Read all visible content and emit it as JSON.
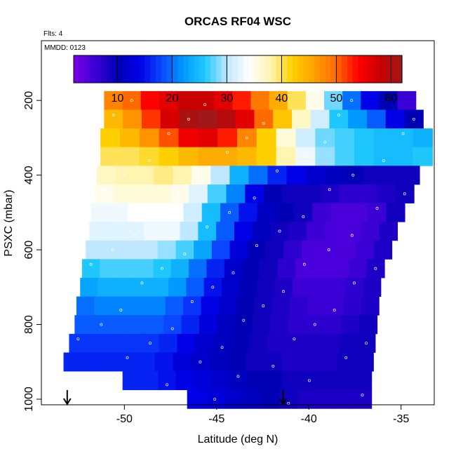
{
  "chart_data": {
    "type": "heatmap",
    "title": "ORCAS RF04 WSC",
    "corner_label_top": "Flts: 4",
    "corner_label_inner": "MMDD: 0123",
    "xlabel": "Latitude (deg N)",
    "ylabel": "PSXC (mbar)",
    "xlim": [
      -54.5,
      -33.2
    ],
    "ylim": [
      1015,
      40
    ],
    "y_reversed": true,
    "x_ticks": [
      -50,
      -45,
      -40,
      -35
    ],
    "x_tick_labels": [
      "-50",
      "-45",
      "-40",
      "-35"
    ],
    "y_ticks": [
      200,
      400,
      600,
      800,
      1000
    ],
    "y_tick_labels": [
      "200",
      "400",
      "600",
      "800",
      "1000"
    ],
    "colorbar": {
      "range": [
        2,
        62
      ],
      "ticks": [
        10,
        20,
        30,
        40,
        50,
        60
      ],
      "tick_labels": [
        "10",
        "20",
        "30",
        "40",
        "50",
        "60"
      ],
      "colors": [
        "#7a00e6",
        "#3a00d6",
        "#0000b4",
        "#0000e6",
        "#0a46ff",
        "#0099ff",
        "#1ec8ff",
        "#bfe8ff",
        "#ffffff",
        "#fff4b0",
        "#ffd000",
        "#ffa000",
        "#ff6a00",
        "#ff0000",
        "#c80000",
        "#a01818"
      ]
    },
    "arrows_lat": [
      -53.1,
      -41.4
    ],
    "grid": false,
    "rows": [
      {
        "p": 200,
        "lat_min": -51.1,
        "lat_max": -34.2,
        "values": [
          48,
          50,
          54,
          56,
          58,
          58,
          56,
          53,
          49,
          45,
          40,
          35,
          28,
          20,
          14,
          10,
          6
        ]
      },
      {
        "p": 250,
        "lat_min": -51.1,
        "lat_max": -33.8,
        "values": [
          44,
          47,
          52,
          57,
          61,
          62,
          60,
          56,
          50,
          43,
          37,
          31,
          26,
          22,
          19,
          14,
          10
        ]
      },
      {
        "p": 300,
        "lat_min": -51.3,
        "lat_max": -33.3,
        "values": [
          42,
          44,
          47,
          51,
          55,
          56,
          53,
          48,
          42,
          36,
          31,
          28,
          27,
          26,
          25,
          25,
          24
        ]
      },
      {
        "p": 350,
        "lat_min": -51.3,
        "lat_max": -33.3,
        "values": [
          40,
          40,
          41,
          42,
          44,
          45,
          45,
          44,
          42,
          38,
          33,
          29,
          27,
          26,
          25,
          25,
          26
        ]
      },
      {
        "p": 400,
        "lat_min": -51.5,
        "lat_max": -34.0,
        "values": [
          37,
          38,
          38,
          39,
          38,
          35,
          30,
          24,
          20,
          16,
          14,
          12,
          11,
          10,
          9,
          9,
          9
        ]
      },
      {
        "p": 450,
        "lat_min": -51.6,
        "lat_max": -34.3,
        "values": [
          35,
          36,
          36,
          36,
          35,
          32,
          27,
          21,
          14,
          10,
          9,
          9,
          8,
          7,
          7,
          8,
          9
        ]
      },
      {
        "p": 500,
        "lat_min": -51.8,
        "lat_max": -34.8,
        "values": [
          33,
          33,
          34,
          34,
          34,
          31,
          25,
          19,
          15,
          11,
          10,
          9,
          6,
          5,
          5,
          6,
          9
        ]
      },
      {
        "p": 550,
        "lat_min": -51.9,
        "lat_max": -35.2,
        "values": [
          32,
          32,
          32,
          33,
          33,
          30,
          25,
          19,
          14,
          11,
          9,
          8,
          6,
          5,
          5,
          6,
          8
        ]
      },
      {
        "p": 600,
        "lat_min": -52.1,
        "lat_max": -35.5,
        "values": [
          30,
          30,
          30,
          30,
          29,
          27,
          23,
          18,
          13,
          10,
          9,
          7,
          5,
          5,
          5,
          6,
          8
        ]
      },
      {
        "p": 650,
        "lat_min": -52.3,
        "lat_max": -35.9,
        "values": [
          26,
          27,
          27,
          27,
          26,
          24,
          20,
          16,
          12,
          10,
          9,
          7,
          5,
          5,
          5,
          6,
          8
        ]
      },
      {
        "p": 700,
        "lat_min": -52.4,
        "lat_max": -36.1,
        "values": [
          23,
          24,
          24,
          24,
          24,
          22,
          19,
          15,
          12,
          10,
          9,
          8,
          6,
          6,
          6,
          7,
          8
        ]
      },
      {
        "p": 750,
        "lat_min": -52.6,
        "lat_max": -36.2,
        "values": [
          20,
          21,
          21,
          21,
          21,
          19,
          17,
          14,
          12,
          10,
          9,
          8,
          7,
          6,
          6,
          7,
          8
        ]
      },
      {
        "p": 800,
        "lat_min": -52.7,
        "lat_max": -36.3,
        "values": [
          19,
          19,
          19,
          19,
          19,
          18,
          16,
          13,
          11,
          10,
          9,
          8,
          7,
          7,
          7,
          8,
          9
        ]
      },
      {
        "p": 850,
        "lat_min": -53.0,
        "lat_max": -36.4,
        "values": [
          17,
          17,
          17,
          17,
          17,
          16,
          14,
          12,
          11,
          10,
          9,
          8,
          8,
          8,
          8,
          9,
          9
        ]
      },
      {
        "p": 900,
        "lat_min": -53.3,
        "lat_max": -36.5,
        "values": [
          16,
          16,
          16,
          16,
          16,
          15,
          13,
          12,
          11,
          10,
          9,
          9,
          8,
          8,
          8,
          9,
          9
        ]
      },
      {
        "p": 950,
        "lat_min": -50.1,
        "lat_max": -36.6,
        "values": [
          16,
          16,
          15,
          14,
          13,
          12,
          11,
          10,
          10,
          9,
          9,
          9,
          9,
          9
        ]
      },
      {
        "p": 1000,
        "lat_min": -46.6,
        "lat_max": -36.6,
        "values": [
          14,
          13,
          12,
          11,
          10,
          9,
          8,
          8,
          8,
          8
        ]
      }
    ]
  }
}
